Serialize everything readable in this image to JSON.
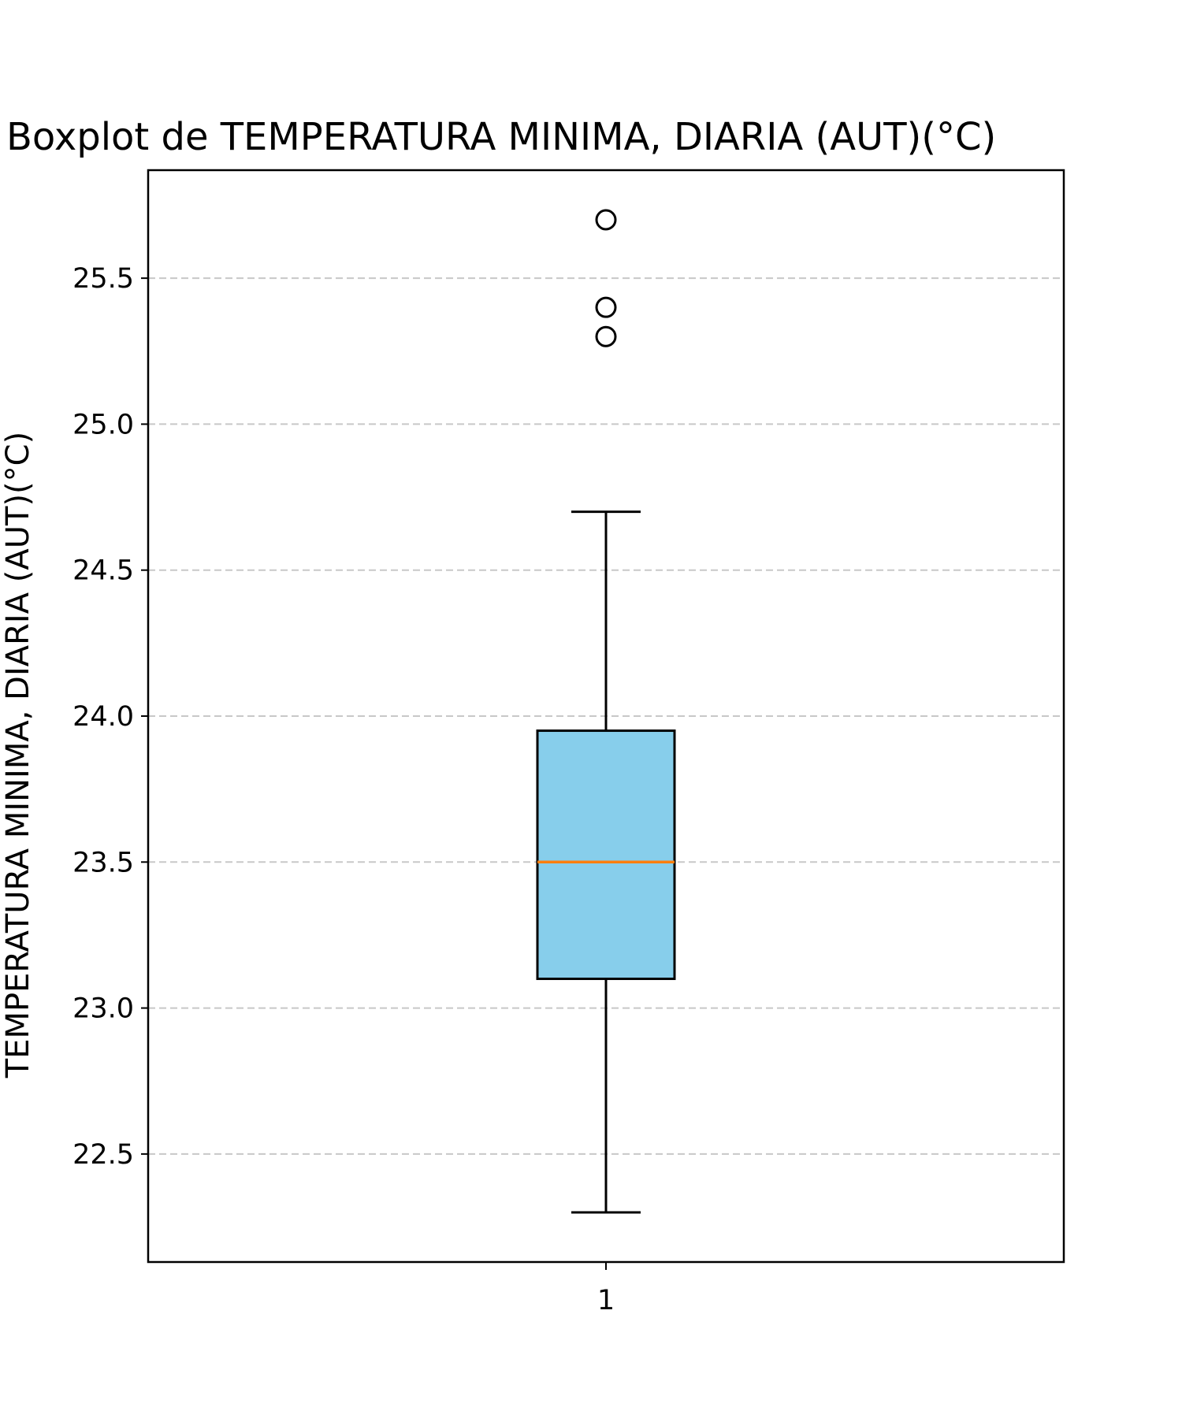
{
  "chart_data": {
    "type": "boxplot",
    "title": "Boxplot de TEMPERATURA MINIMA, DIARIA (AUT)(°C)",
    "xlabel": "",
    "ylabel": "TEMPERATURA MINIMA, DIARIA (AUT)(°C)",
    "ylim": [
      22.13,
      25.87
    ],
    "y_ticks": [
      22.5,
      23.0,
      23.5,
      24.0,
      24.5,
      25.0,
      25.5
    ],
    "y_tick_labels": [
      "22.5",
      "23.0",
      "23.5",
      "24.0",
      "24.5",
      "25.0",
      "25.5"
    ],
    "categories": [
      "1"
    ],
    "grid": {
      "y": true,
      "x": false,
      "style": "dashed"
    },
    "boxes": [
      {
        "label": "1",
        "whisker_low": 22.3,
        "q1": 23.1,
        "median": 23.5,
        "q3": 23.95,
        "whisker_high": 24.7,
        "outliers": [
          25.3,
          25.4,
          25.7
        ]
      }
    ],
    "colors": {
      "box_fill": "#87ceeb",
      "median": "#ff7f0e",
      "lines": "#000000",
      "grid": "#c8c8c8"
    }
  }
}
